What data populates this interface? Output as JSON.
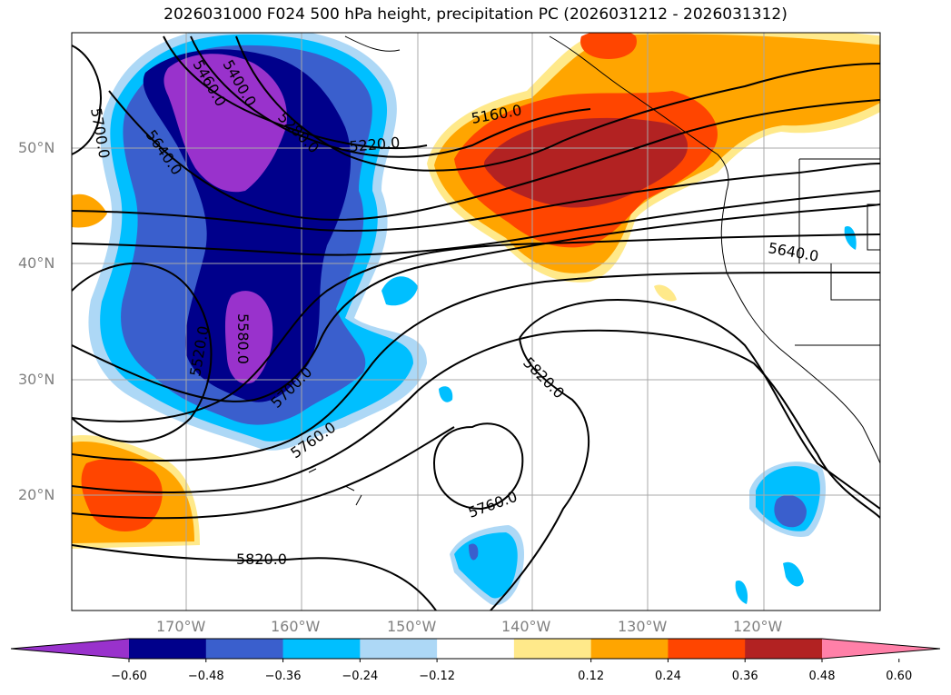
{
  "title": "2026031000 F024 500 hPa height, precipitation PC (2026031212 - 2026031312)",
  "map": {
    "lat_labels": [
      "50°N",
      "40°N",
      "30°N",
      "20°N"
    ],
    "lon_labels": [
      "170°W",
      "160°W",
      "150°W",
      "140°W",
      "130°W",
      "120°W"
    ],
    "contour_labels": [
      "5160.0",
      "5220.0",
      "5640.0",
      "5580.0",
      "5520.0",
      "5700.0",
      "5760.0",
      "5820.0",
      "5760.0",
      "5820.0",
      "5460.0",
      "5400.0",
      "5280.0",
      "5700.0",
      "5640.0"
    ]
  },
  "colorbar": {
    "ticks": [
      "−0.60",
      "−0.48",
      "−0.36",
      "−0.24",
      "−0.12",
      "0.12",
      "0.24",
      "0.36",
      "0.48",
      "0.60"
    ],
    "colors": [
      "#9932cc",
      "#00008b",
      "#3a5fcd",
      "#00bfff",
      "#add8f6",
      "#ffffff",
      "#ffe98a",
      "#ffa500",
      "#ff4500",
      "#b22222",
      "#ff80a8"
    ]
  }
}
